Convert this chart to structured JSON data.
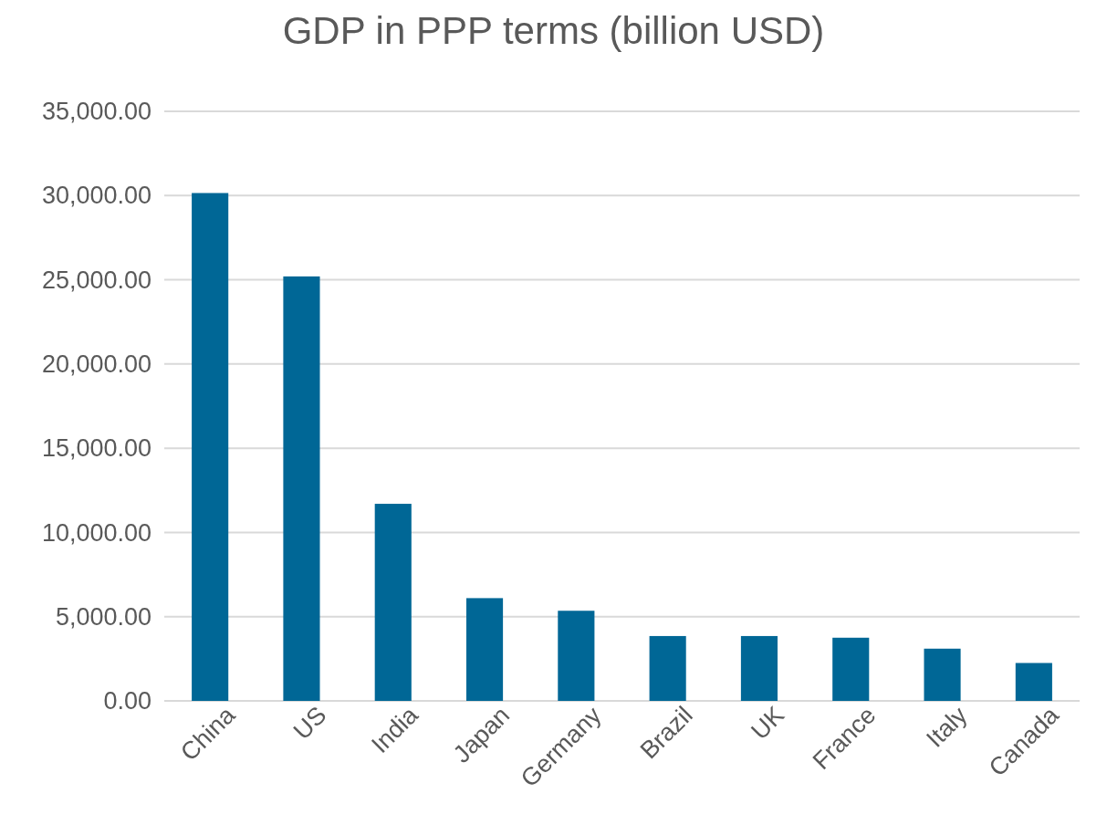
{
  "chart_data": {
    "type": "bar",
    "title": "GDP in PPP terms (billion USD)",
    "categories": [
      "China",
      "US",
      "India",
      "Japan",
      "Germany",
      "Brazil",
      "UK",
      "France",
      "Italy",
      "Canada"
    ],
    "values": [
      30150,
      25200,
      11700,
      6100,
      5350,
      3850,
      3850,
      3750,
      3100,
      2250
    ],
    "color": "#006796",
    "ylim": [
      0,
      35000
    ],
    "yticks": [
      {
        "value": 0,
        "label": "0.00"
      },
      {
        "value": 5000,
        "label": "5,000.00"
      },
      {
        "value": 10000,
        "label": "10,000.00"
      },
      {
        "value": 15000,
        "label": "15,000.00"
      },
      {
        "value": 20000,
        "label": "20,000.00"
      },
      {
        "value": 25000,
        "label": "25,000.00"
      },
      {
        "value": 30000,
        "label": "30,000.00"
      },
      {
        "value": 35000,
        "label": "35,000.00"
      }
    ],
    "grid": true
  }
}
